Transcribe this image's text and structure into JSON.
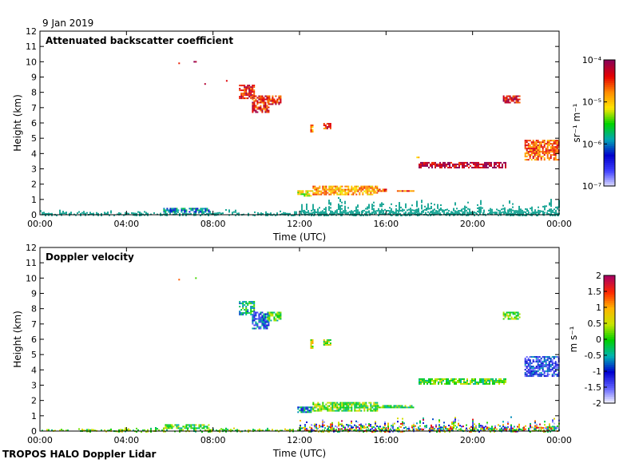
{
  "date": "9 Jan 2019",
  "footer": "TROPOS HALO Doppler Lidar",
  "colors": {
    "cmap_backscatter": [
      "#e6e6ff",
      "#4141ff",
      "#0000cc",
      "#00a6b4",
      "#00d400",
      "#ffe600",
      "#ff8c00",
      "#e60000",
      "#8c0055"
    ],
    "cmap_velocity": [
      "#ffffff",
      "#6060ff",
      "#0000d0",
      "#00b4b4",
      "#00d000",
      "#c8e600",
      "#ffb400",
      "#ff2800",
      "#aa0060"
    ],
    "low_cloud_teal": "#1aa696"
  },
  "chart_data": [
    {
      "type": "heatmap",
      "title": "Attenuated backscatter coefficient",
      "xlabel": "Time (UTC)",
      "ylabel": "Height (km)",
      "x_ticks": [
        "00:00",
        "04:00",
        "08:00",
        "12:00",
        "16:00",
        "20:00",
        "00:00"
      ],
      "xlim_hours": [
        0,
        24
      ],
      "y_ticks": [
        "0",
        "1",
        "2",
        "3",
        "4",
        "5",
        "6",
        "7",
        "8",
        "9",
        "10",
        "11",
        "12"
      ],
      "ylim_km": [
        0,
        12
      ],
      "colorbar": {
        "label": "sr⁻¹ m⁻¹",
        "scale": "log",
        "range": [
          1e-07,
          0.0001
        ],
        "tick_labels": [
          "10⁻⁴",
          "10⁻⁵",
          "10⁻⁶",
          "10⁻⁷"
        ]
      },
      "features": [
        {
          "time_h": [
            6.4,
            6.4
          ],
          "height_km": [
            9.85,
            9.95
          ],
          "level": 0.9
        },
        {
          "time_h": [
            7.1,
            7.2
          ],
          "height_km": [
            9.95,
            10.05
          ],
          "level": 0.9
        },
        {
          "time_h": [
            7.6,
            7.65
          ],
          "height_km": [
            8.5,
            8.6
          ],
          "level": 0.85
        },
        {
          "time_h": [
            8.6,
            8.65
          ],
          "height_km": [
            8.7,
            8.8
          ],
          "level": 0.8
        },
        {
          "time_h": [
            9.2,
            9.9
          ],
          "height_km": [
            7.6,
            8.5
          ],
          "level": 0.88
        },
        {
          "time_h": [
            9.8,
            10.6
          ],
          "height_km": [
            6.7,
            7.8
          ],
          "level": 0.86
        },
        {
          "time_h": [
            10.5,
            11.1
          ],
          "height_km": [
            7.2,
            7.8
          ],
          "level": 0.85
        },
        {
          "time_h": [
            12.5,
            12.6
          ],
          "height_km": [
            5.4,
            6.0
          ],
          "level": 0.75
        },
        {
          "time_h": [
            13.1,
            13.4
          ],
          "height_km": [
            5.6,
            6.0
          ],
          "level": 0.85
        },
        {
          "time_h": [
            11.9,
            12.6
          ],
          "height_km": [
            1.2,
            1.6
          ],
          "level": 0.6
        },
        {
          "time_h": [
            12.6,
            15.6
          ],
          "height_km": [
            1.3,
            1.9
          ],
          "level": 0.72
        },
        {
          "time_h": [
            15.6,
            16.0
          ],
          "height_km": [
            1.5,
            1.7
          ],
          "level": 0.8
        },
        {
          "time_h": [
            16.5,
            17.3
          ],
          "height_km": [
            1.5,
            1.6
          ],
          "level": 0.8
        },
        {
          "time_h": [
            17.4,
            17.5
          ],
          "height_km": [
            3.6,
            3.8
          ],
          "level": 0.6
        },
        {
          "time_h": [
            17.5,
            21.5
          ],
          "height_km": [
            3.05,
            3.45
          ],
          "level": 0.95
        },
        {
          "time_h": [
            21.4,
            22.2
          ],
          "height_km": [
            7.3,
            7.8
          ],
          "level": 0.9
        },
        {
          "time_h": [
            22.4,
            24.0
          ],
          "height_km": [
            3.6,
            4.9
          ],
          "level": 0.8
        },
        {
          "time_h": [
            0.0,
            24.0
          ],
          "height_km": [
            0.0,
            0.4
          ],
          "level": 0.35
        },
        {
          "time_h": [
            5.7,
            7.8
          ],
          "height_km": [
            0.15,
            0.45
          ],
          "level": 0.35
        },
        {
          "time_h": [
            12.0,
            24.0
          ],
          "height_km": [
            0.0,
            1.2
          ],
          "level": 0.35
        }
      ]
    },
    {
      "type": "heatmap",
      "title": "Doppler velocity",
      "xlabel": "Time (UTC)",
      "ylabel": "Height (km)",
      "x_ticks": [
        "00:00",
        "04:00",
        "08:00",
        "12:00",
        "16:00",
        "20:00",
        "00:00"
      ],
      "xlim_hours": [
        0,
        24
      ],
      "y_ticks": [
        "0",
        "1",
        "2",
        "3",
        "4",
        "5",
        "6",
        "7",
        "8",
        "9",
        "10",
        "11",
        "12"
      ],
      "ylim_km": [
        0,
        12
      ],
      "colorbar": {
        "label": "m s⁻¹",
        "scale": "linear",
        "range": [
          -2,
          2
        ],
        "tick_labels": [
          "2",
          "1.5",
          "1",
          "0.5",
          "0",
          "-0.5",
          "-1",
          "-1.5",
          "-2"
        ]
      },
      "features": [
        {
          "time_h": [
            6.4,
            6.4
          ],
          "height_km": [
            9.85,
            9.95
          ],
          "value": 0.8
        },
        {
          "time_h": [
            7.1,
            7.2
          ],
          "height_km": [
            9.95,
            10.05
          ],
          "value": 0.2
        },
        {
          "time_h": [
            7.6,
            7.65
          ],
          "height_km": [
            8.5,
            8.6
          ],
          "value": 0.2
        },
        {
          "time_h": [
            9.2,
            9.9
          ],
          "height_km": [
            7.6,
            8.5
          ],
          "value": -0.3
        },
        {
          "time_h": [
            9.8,
            10.6
          ],
          "height_km": [
            6.7,
            7.8
          ],
          "value": -0.9
        },
        {
          "time_h": [
            10.5,
            11.1
          ],
          "height_km": [
            7.2,
            7.8
          ],
          "value": 0.0
        },
        {
          "time_h": [
            12.5,
            12.6
          ],
          "height_km": [
            5.4,
            6.0
          ],
          "value": 0.5
        },
        {
          "time_h": [
            13.1,
            13.4
          ],
          "height_km": [
            5.6,
            6.0
          ],
          "value": 0.3
        },
        {
          "time_h": [
            11.9,
            12.6
          ],
          "height_km": [
            1.2,
            1.6
          ],
          "value": -0.6
        },
        {
          "time_h": [
            12.6,
            15.6
          ],
          "height_km": [
            1.3,
            1.9
          ],
          "value": 0.2
        },
        {
          "time_h": [
            15.6,
            17.3
          ],
          "height_km": [
            1.5,
            1.7
          ],
          "value": 0.0
        },
        {
          "time_h": [
            17.5,
            21.5
          ],
          "height_km": [
            3.05,
            3.45
          ],
          "value": 0.1
        },
        {
          "time_h": [
            21.4,
            22.2
          ],
          "height_km": [
            7.3,
            7.8
          ],
          "value": 0.1
        },
        {
          "time_h": [
            22.4,
            24.0
          ],
          "height_km": [
            3.6,
            4.9
          ],
          "value": -1.1
        },
        {
          "time_h": [
            0.0,
            24.0
          ],
          "height_km": [
            0.0,
            0.3
          ],
          "value": 0.2
        },
        {
          "time_h": [
            5.7,
            7.8
          ],
          "height_km": [
            0.15,
            0.45
          ],
          "value": 0.1
        },
        {
          "time_h": [
            12.0,
            24.0
          ],
          "height_km": [
            0.0,
            1.1
          ],
          "value": 0.6
        }
      ]
    }
  ]
}
